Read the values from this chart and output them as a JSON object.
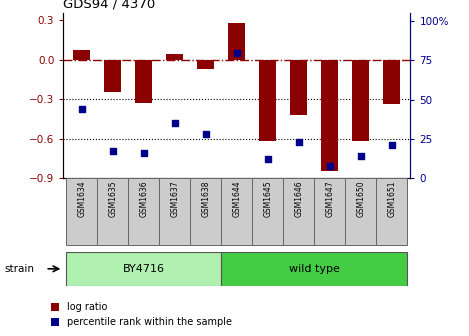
{
  "title": "GDS94 / 4370",
  "samples": [
    "GSM1634",
    "GSM1635",
    "GSM1636",
    "GSM1637",
    "GSM1638",
    "GSM1644",
    "GSM1645",
    "GSM1646",
    "GSM1647",
    "GSM1650",
    "GSM1651"
  ],
  "log_ratios": [
    0.07,
    -0.25,
    -0.33,
    0.04,
    -0.07,
    0.28,
    -0.62,
    -0.42,
    -0.85,
    -0.62,
    -0.34
  ],
  "percentile_ranks": [
    44,
    17,
    16,
    35,
    28,
    80,
    12,
    23,
    8,
    14,
    21
  ],
  "strain_groups": [
    {
      "label": "BY4716",
      "start": 0,
      "end": 5,
      "color": "#b0f0b0"
    },
    {
      "label": "wild type",
      "start": 5,
      "end": 11,
      "color": "#44cc44"
    }
  ],
  "bar_color": "#8B0000",
  "dot_color": "#00008B",
  "ylim_left": [
    -0.9,
    0.35
  ],
  "ylim_right": [
    0,
    105
  ],
  "yticks_left": [
    -0.9,
    -0.6,
    -0.3,
    0.0,
    0.3
  ],
  "yticks_right": [
    0,
    25,
    50,
    75,
    100
  ],
  "ytick_labels_right": [
    "0",
    "25",
    "50",
    "75",
    "100%"
  ],
  "dotted_lines": [
    -0.3,
    -0.6
  ],
  "plot_bg": "#ffffff",
  "legend_items": [
    "log ratio",
    "percentile rank within the sample"
  ],
  "strain_label": "strain"
}
